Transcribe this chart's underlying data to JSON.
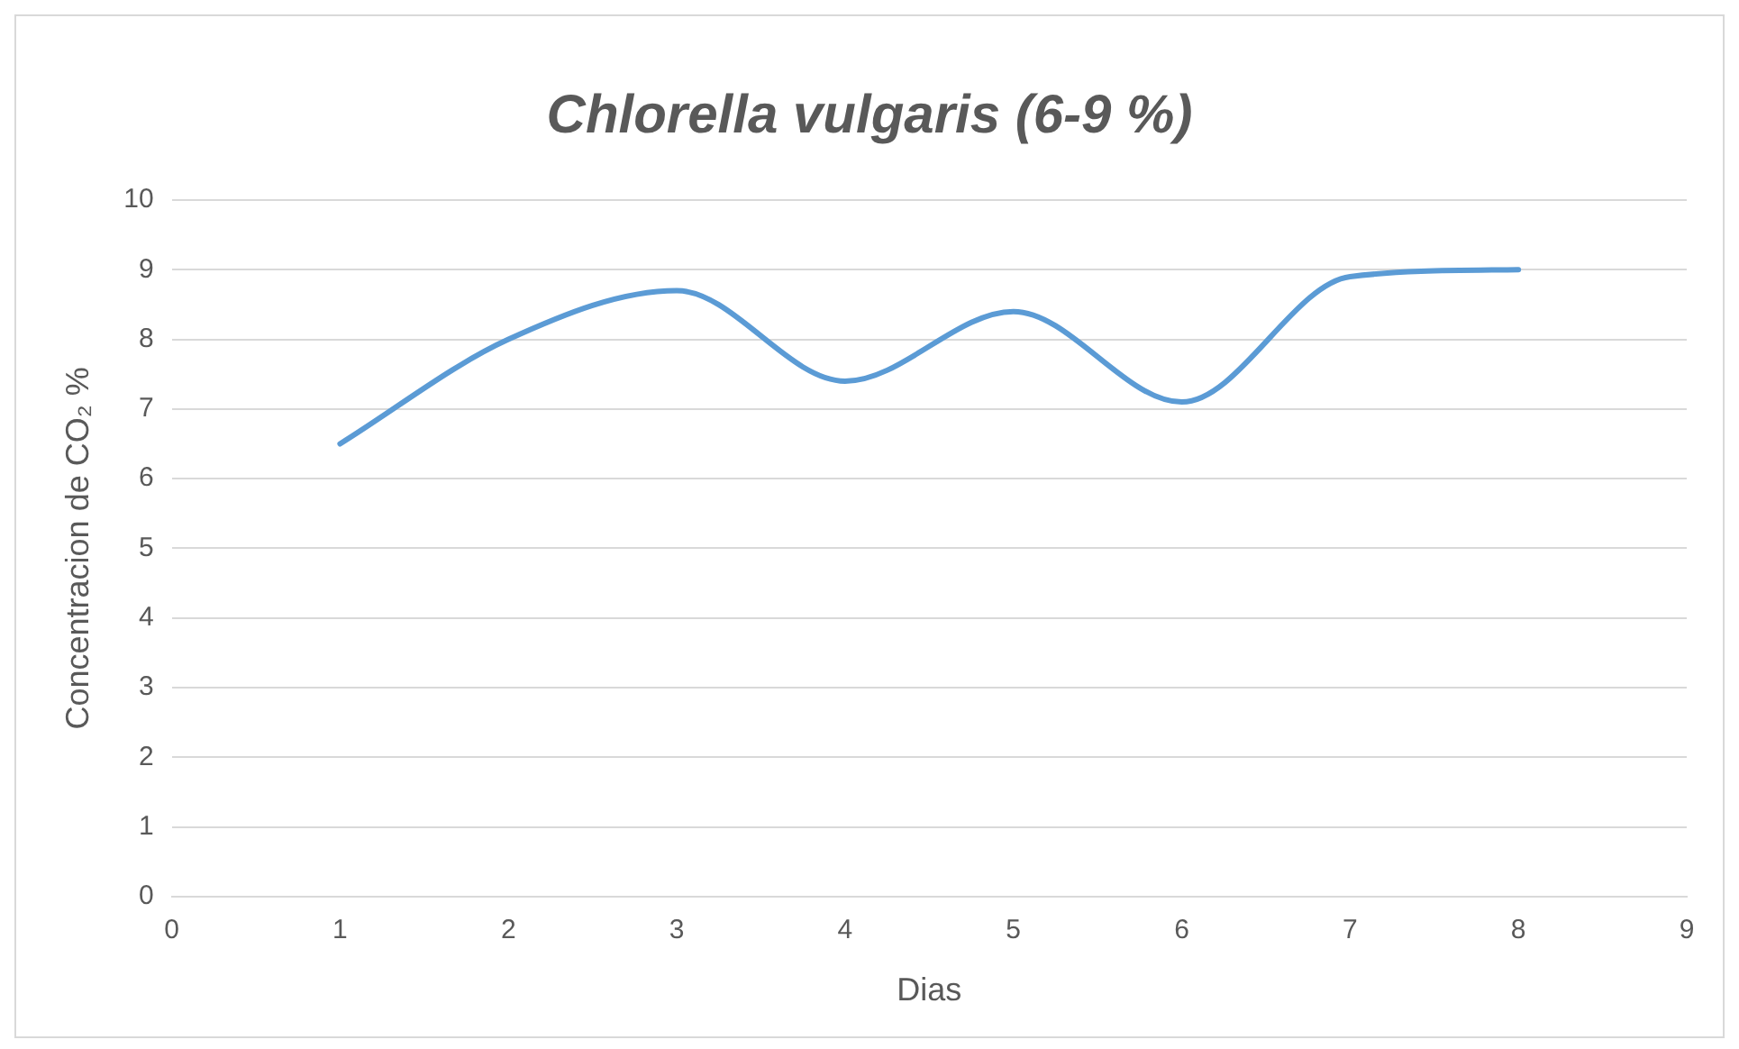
{
  "chart_data": {
    "type": "line",
    "title": "Chlorella vulgaris (6-9 %)",
    "xlabel": "Dias",
    "ylabel": "Concentracion de CO₂ %",
    "x": [
      1,
      2,
      3,
      4,
      5,
      6,
      7,
      8
    ],
    "series": [
      {
        "color": "#5b9bd5",
        "values": [
          6.5,
          8.0,
          8.7,
          7.4,
          8.4,
          7.1,
          8.9,
          9.0
        ]
      }
    ],
    "xlim": [
      0,
      9
    ],
    "xticks": [
      0,
      1,
      2,
      3,
      4,
      5,
      6,
      7,
      8,
      9
    ],
    "ylim": [
      0,
      10
    ],
    "yticks": [
      0,
      1,
      2,
      3,
      4,
      5,
      6,
      7,
      8,
      9,
      10
    ],
    "grid": "y",
    "legend": false,
    "marker": "none",
    "line_style": "solid"
  }
}
